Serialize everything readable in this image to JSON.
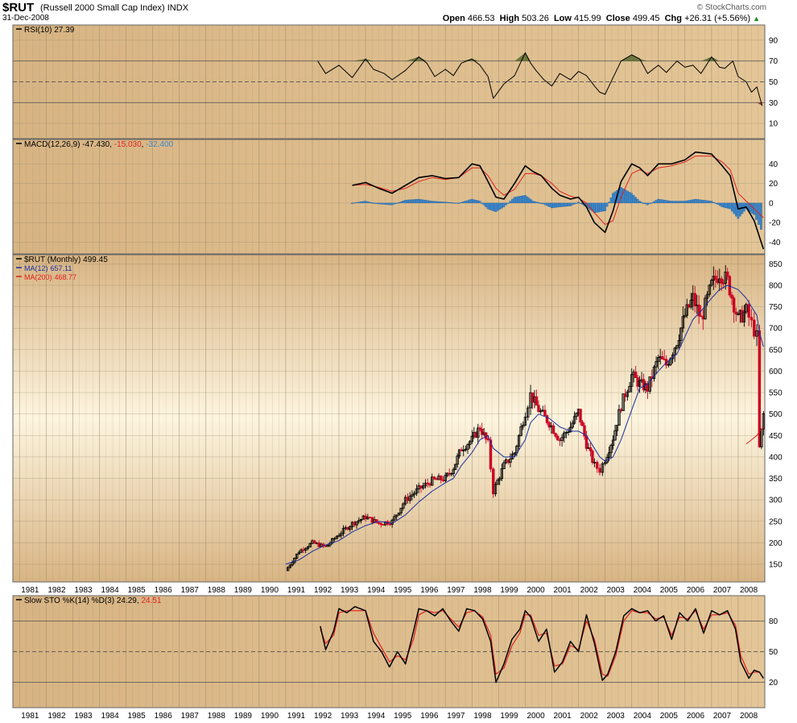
{
  "header": {
    "symbol": "$RUT",
    "name": "(Russell 2000 Small Cap Index)",
    "exchange": "INDX",
    "date": "31-Dec-2008",
    "brand": "© StockCharts.com",
    "open_label": "Open",
    "open": "466.53",
    "high_label": "High",
    "high": "503.26",
    "low_label": "Low",
    "low": "415.99",
    "close_label": "Close",
    "close": "499.45",
    "chg_label": "Chg",
    "chg": "+26.31 (+5.56%)",
    "chg_arrow": "▲"
  },
  "colors": {
    "panel_tan": "#d8b483",
    "panel_light": "#fdf5df",
    "price_up": "#000000",
    "price_down": "#cc0022",
    "ma12": "#1a2ea0",
    "ma200": "#e0201c",
    "hist": "#3d86c8",
    "hist_edge": "#1c5898",
    "rsi_fill": "#5a6a30",
    "grid": "#9a8a6a"
  },
  "x_axis": {
    "years": [
      "1981",
      "1982",
      "1983",
      "1984",
      "1985",
      "1986",
      "1987",
      "1988",
      "1989",
      "1990",
      "1991",
      "1992",
      "1993",
      "1994",
      "1995",
      "1996",
      "1997",
      "1998",
      "1999",
      "2000",
      "2001",
      "2002",
      "2003",
      "2004",
      "2005",
      "2006",
      "2007",
      "2008"
    ]
  },
  "chart_data": [
    {
      "type": "line",
      "panel": "rsi",
      "title": "RSI(10) 27.39",
      "ylim": [
        0,
        100
      ],
      "yticks": [
        10,
        30,
        50,
        70,
        90
      ],
      "reference_lines": [
        30,
        50,
        70
      ],
      "x": [
        1992.2,
        1992.5,
        1993.0,
        1993.5,
        1994.0,
        1994.3,
        1994.7,
        1995.0,
        1995.5,
        1996.0,
        1996.3,
        1996.6,
        1997.0,
        1997.3,
        1997.6,
        1998.0,
        1998.3,
        1998.6,
        1998.8,
        1999.2,
        1999.6,
        2000.0,
        2000.2,
        2000.4,
        2000.7,
        2001.0,
        2001.3,
        2001.7,
        2002.0,
        2002.3,
        2002.6,
        2002.8,
        2003.0,
        2003.3,
        2003.6,
        2004.0,
        2004.3,
        2004.6,
        2005.0,
        2005.3,
        2005.7,
        2006.0,
        2006.3,
        2006.6,
        2007.0,
        2007.3,
        2007.5,
        2007.8,
        2008.0,
        2008.3,
        2008.5,
        2008.7,
        2008.9
      ],
      "series": [
        {
          "name": "RSI(10)",
          "values": [
            70,
            58,
            66,
            54,
            72,
            62,
            58,
            52,
            61,
            74,
            68,
            55,
            62,
            56,
            68,
            72,
            66,
            55,
            34,
            48,
            56,
            78,
            68,
            61,
            52,
            46,
            58,
            52,
            60,
            56,
            46,
            40,
            38,
            54,
            70,
            76,
            72,
            58,
            66,
            59,
            70,
            64,
            66,
            58,
            74,
            64,
            63,
            70,
            55,
            50,
            40,
            45,
            27
          ]
        }
      ]
    },
    {
      "type": "line",
      "panel": "macd",
      "title": "MACD(12,26,9) -47.430, -15.030, -32.400",
      "legend_values": [
        "-47.430",
        "-15.030",
        "-32.400"
      ],
      "ylim": [
        -47,
        60
      ],
      "yticks": [
        -40,
        -20,
        0,
        20,
        40
      ],
      "x": [
        1993.5,
        1994.0,
        1994.5,
        1995.0,
        1995.5,
        1996.0,
        1996.5,
        1997.0,
        1997.5,
        1998.0,
        1998.3,
        1998.6,
        1998.9,
        1999.2,
        1999.6,
        2000.0,
        2000.3,
        2000.6,
        2001.0,
        2001.3,
        2001.7,
        2002.0,
        2002.3,
        2002.6,
        2003.0,
        2003.3,
        2003.6,
        2004.0,
        2004.3,
        2004.6,
        2005.0,
        2005.5,
        2006.0,
        2006.4,
        2007.0,
        2007.4,
        2007.7,
        2008.0,
        2008.3,
        2008.6,
        2008.95
      ],
      "series": [
        {
          "name": "MACD",
          "values": [
            18,
            21,
            15,
            10,
            18,
            26,
            28,
            25,
            26,
            40,
            38,
            22,
            6,
            4,
            20,
            38,
            32,
            28,
            15,
            8,
            4,
            6,
            -4,
            -20,
            -30,
            -8,
            22,
            40,
            36,
            28,
            40,
            40,
            44,
            52,
            50,
            38,
            28,
            -6,
            -4,
            -18,
            -47
          ]
        },
        {
          "name": "Signal",
          "values": [
            18,
            19,
            16,
            12,
            15,
            22,
            26,
            24,
            26,
            36,
            36,
            28,
            15,
            8,
            14,
            30,
            30,
            28,
            20,
            12,
            7,
            5,
            0,
            -10,
            -22,
            -18,
            6,
            30,
            34,
            30,
            36,
            38,
            42,
            48,
            48,
            42,
            34,
            10,
            2,
            -6,
            -15
          ]
        },
        {
          "name": "Histogram",
          "values": [
            0,
            2,
            -1,
            -2,
            3,
            4,
            2,
            1,
            0,
            4,
            2,
            -6,
            -9,
            -4,
            6,
            8,
            2,
            0,
            -5,
            -4,
            -3,
            1,
            -4,
            -10,
            -8,
            10,
            16,
            10,
            2,
            -2,
            4,
            2,
            2,
            4,
            2,
            -4,
            -6,
            -16,
            -6,
            -12,
            -32
          ]
        }
      ]
    },
    {
      "type": "candlestick",
      "panel": "price",
      "title": "$RUT (Monthly) 499.45",
      "legend": [
        {
          "name": "MA(12)",
          "value": "657.11"
        },
        {
          "name": "MA(200)",
          "value": "468.77"
        }
      ],
      "ylim": [
        120,
        860
      ],
      "yticks": [
        150,
        200,
        250,
        300,
        350,
        400,
        450,
        500,
        550,
        600,
        650,
        700,
        750,
        800,
        850
      ],
      "x": [
        1991.0,
        1991.5,
        1992.0,
        1992.5,
        1993.0,
        1993.5,
        1994.0,
        1994.5,
        1995.0,
        1995.5,
        1996.0,
        1996.5,
        1997.0,
        1997.3,
        1997.6,
        1998.0,
        1998.3,
        1998.6,
        1998.8,
        1999.2,
        1999.6,
        2000.0,
        2000.2,
        2000.5,
        2000.9,
        2001.3,
        2001.7,
        2002.0,
        2002.3,
        2002.6,
        2002.8,
        2003.0,
        2003.3,
        2003.6,
        2004.0,
        2004.3,
        2004.6,
        2005.0,
        2005.3,
        2005.7,
        2006.0,
        2006.3,
        2006.6,
        2007.0,
        2007.3,
        2007.6,
        2008.0,
        2008.3,
        2008.5,
        2008.7,
        2008.8,
        2008.95
      ],
      "series": [
        {
          "name": "$RUT",
          "values": [
            135,
            180,
            200,
            190,
            220,
            245,
            260,
            245,
            250,
            300,
            325,
            345,
            350,
            375,
            420,
            440,
            470,
            430,
            320,
            380,
            410,
            505,
            545,
            510,
            480,
            440,
            470,
            505,
            430,
            380,
            370,
            395,
            445,
            520,
            590,
            570,
            560,
            630,
            615,
            670,
            730,
            770,
            720,
            800,
            830,
            810,
            720,
            740,
            710,
            680,
            420,
            499
          ]
        },
        {
          "name": "MA(12)",
          "values": [
            150,
            160,
            180,
            195,
            205,
            225,
            240,
            250,
            245,
            265,
            295,
            320,
            340,
            350,
            380,
            410,
            440,
            450,
            420,
            400,
            400,
            440,
            480,
            500,
            490,
            470,
            460,
            460,
            450,
            420,
            400,
            390,
            400,
            440,
            510,
            560,
            570,
            600,
            620,
            640,
            680,
            720,
            740,
            770,
            790,
            800,
            790,
            770,
            750,
            730,
            690,
            657
          ]
        },
        {
          "name": "MA(200)",
          "values": [
            null,
            null,
            null,
            null,
            null,
            null,
            null,
            null,
            null,
            null,
            null,
            null,
            null,
            null,
            null,
            null,
            null,
            null,
            null,
            null,
            null,
            null,
            null,
            null,
            null,
            null,
            null,
            null,
            null,
            null,
            null,
            null,
            null,
            null,
            null,
            null,
            null,
            null,
            null,
            null,
            null,
            null,
            null,
            null,
            null,
            null,
            null,
            430,
            440,
            450,
            460,
            469
          ]
        }
      ]
    },
    {
      "type": "line",
      "panel": "stochastic",
      "title": "Slow STO %K(14) %D(3) 24.29, 24.51",
      "legend_values": [
        "24.29",
        "24.51"
      ],
      "ylim": [
        0,
        100
      ],
      "yticks": [
        20,
        50,
        80
      ],
      "reference_lines": [
        20,
        50,
        80
      ],
      "x": [
        1992.3,
        1992.5,
        1992.8,
        1993.0,
        1993.3,
        1993.6,
        1994.0,
        1994.3,
        1994.6,
        1994.9,
        1995.2,
        1995.5,
        1995.8,
        1996.0,
        1996.3,
        1996.6,
        1996.9,
        1997.2,
        1997.5,
        1997.8,
        1998.1,
        1998.4,
        1998.7,
        1998.9,
        1999.2,
        1999.5,
        1999.8,
        2000.0,
        2000.2,
        2000.5,
        2000.8,
        2001.1,
        2001.4,
        2001.7,
        2002.0,
        2002.3,
        2002.6,
        2002.9,
        2003.1,
        2003.4,
        2003.7,
        2004.0,
        2004.3,
        2004.6,
        2004.9,
        2005.2,
        2005.5,
        2005.8,
        2006.1,
        2006.4,
        2006.7,
        2007.0,
        2007.3,
        2007.6,
        2007.9,
        2008.1,
        2008.4,
        2008.6,
        2008.8,
        2008.95
      ],
      "series": [
        {
          "name": "%K",
          "values": [
            75,
            52,
            70,
            92,
            88,
            94,
            90,
            60,
            50,
            35,
            50,
            38,
            70,
            92,
            90,
            85,
            92,
            80,
            70,
            92,
            90,
            82,
            60,
            20,
            38,
            62,
            72,
            90,
            84,
            60,
            72,
            30,
            40,
            60,
            50,
            86,
            58,
            22,
            28,
            50,
            85,
            92,
            88,
            90,
            80,
            85,
            62,
            88,
            80,
            92,
            68,
            90,
            86,
            90,
            72,
            40,
            24,
            32,
            30,
            24
          ]
        },
        {
          "name": "%D",
          "values": [
            72,
            58,
            66,
            88,
            90,
            90,
            90,
            68,
            54,
            40,
            46,
            42,
            62,
            86,
            90,
            88,
            90,
            82,
            74,
            88,
            90,
            84,
            66,
            28,
            34,
            56,
            68,
            86,
            86,
            66,
            68,
            36,
            38,
            56,
            52,
            80,
            62,
            28,
            26,
            46,
            80,
            90,
            88,
            88,
            82,
            84,
            66,
            84,
            82,
            90,
            72,
            86,
            86,
            88,
            76,
            46,
            28,
            30,
            30,
            24
          ]
        }
      ]
    }
  ]
}
